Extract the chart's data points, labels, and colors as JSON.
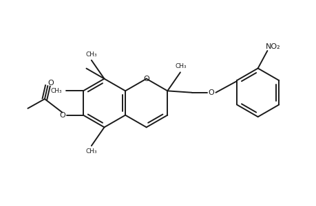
{
  "background_color": "#ffffff",
  "line_color": "#1a1a1a",
  "line_width": 1.4,
  "figure_size": [
    4.6,
    3.0
  ],
  "dpi": 100,
  "xlim": [
    0,
    9.2
  ],
  "ylim": [
    0,
    6.0
  ]
}
